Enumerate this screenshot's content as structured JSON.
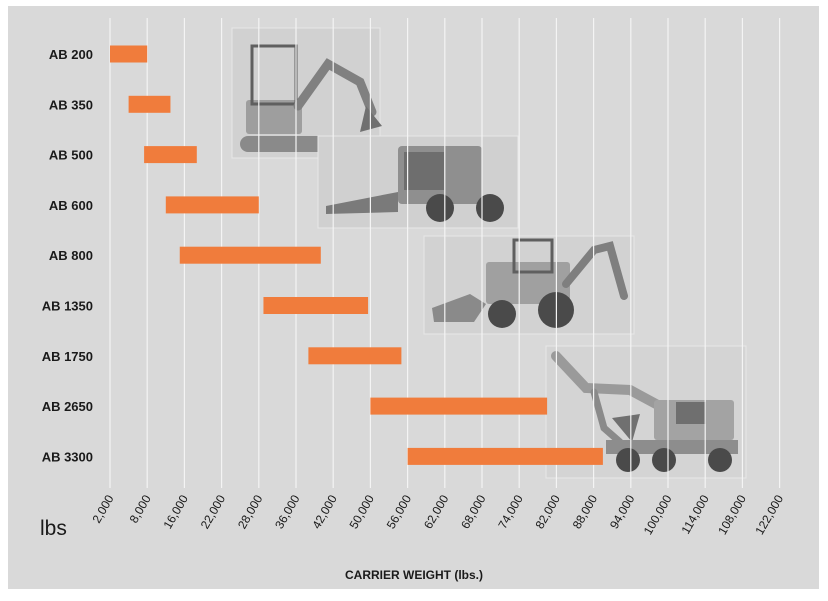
{
  "chart_data": {
    "type": "bar",
    "subtype": "floating-range-horizontal",
    "categories": [
      "AB 200",
      "AB 350",
      "AB 500",
      "AB 600",
      "AB 800",
      "AB 1350",
      "AB 1750",
      "AB 2650",
      "AB 3300"
    ],
    "ranges": [
      [
        2000,
        8000
      ],
      [
        5000,
        13000
      ],
      [
        7500,
        18000
      ],
      [
        12000,
        28000
      ],
      [
        15000,
        40000
      ],
      [
        29000,
        49500
      ],
      [
        38000,
        55000
      ],
      [
        50000,
        80000
      ],
      [
        56000,
        92000
      ]
    ],
    "x_tick_labels": [
      "2,000",
      "8,000",
      "16,000",
      "22,000",
      "28,000",
      "36,000",
      "42,000",
      "50,000",
      "56,000",
      "62,000",
      "68,000",
      "74,000",
      "82,000",
      "88,000",
      "94,000",
      "100,000",
      "114,000",
      "108,000",
      "122,000"
    ],
    "x_unit_label": "lbs",
    "xlabel": "CARRIER WEIGHT (lbs.)",
    "ylabel": "",
    "title": "",
    "grid": true,
    "colors": {
      "background": "#d9d9d9",
      "bar": "#f07c3c",
      "grid": "#f4f4f4",
      "text": "#1a1a1a",
      "photo": "#bdbdbd"
    },
    "images": [
      "mini-excavator",
      "skid-steer-loader",
      "backhoe-loader",
      "wheeled-excavator"
    ]
  }
}
